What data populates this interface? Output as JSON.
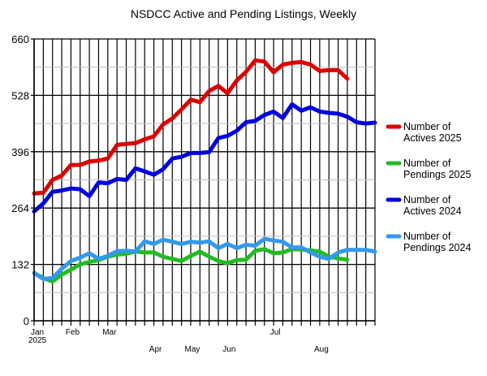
{
  "chart_data": {
    "type": "line",
    "title": "NSDCC Active and Pending Listings, Weekly",
    "xlabel": "",
    "ylabel": "",
    "ylim": [
      0,
      660
    ],
    "yticks": [
      0,
      132,
      264,
      396,
      528,
      660
    ],
    "grid": true,
    "legend_position": "right",
    "x_tick_labels": [
      {
        "week": 0,
        "label": "Jan"
      },
      {
        "week": 0,
        "label": "2025"
      },
      {
        "week": 4,
        "label": "Feb"
      },
      {
        "week": 8,
        "label": "Mar"
      },
      {
        "week": 13,
        "label": "Apr"
      },
      {
        "week": 17,
        "label": "May"
      },
      {
        "week": 21,
        "label": "Jun"
      },
      {
        "week": 26,
        "label": "Jul"
      },
      {
        "week": 31,
        "label": "Aug"
      }
    ],
    "series": [
      {
        "name": "Number of Actives 2025",
        "color": "#dd0000",
        "values": [
          298,
          300,
          330,
          340,
          365,
          365,
          373,
          375,
          380,
          412,
          414,
          416,
          425,
          432,
          460,
          474,
          495,
          518,
          512,
          538,
          550,
          533,
          563,
          583,
          610,
          607,
          582,
          600,
          604,
          606,
          600,
          585,
          587,
          587,
          567
        ]
      },
      {
        "name": "Number of Pendings 2025",
        "color": "#22bb22",
        "values": [
          112,
          100,
          92,
          108,
          120,
          132,
          138,
          142,
          150,
          155,
          157,
          162,
          160,
          160,
          150,
          145,
          140,
          152,
          162,
          150,
          140,
          135,
          142,
          143,
          164,
          168,
          158,
          160,
          168,
          167,
          165,
          162,
          150,
          146,
          143
        ]
      },
      {
        "name": "Number of Actives 2024",
        "color": "#0000dd",
        "values": [
          256,
          275,
          302,
          305,
          310,
          308,
          292,
          324,
          322,
          332,
          330,
          357,
          350,
          342,
          355,
          380,
          384,
          393,
          393,
          395,
          428,
          433,
          445,
          465,
          468,
          482,
          490,
          475,
          507,
          492,
          500,
          490,
          487,
          485,
          478,
          465,
          462,
          464
        ]
      },
      {
        "name": "Number of Pendings 2024",
        "color": "#3399ee",
        "values": [
          112,
          98,
          100,
          122,
          140,
          148,
          158,
          145,
          152,
          163,
          164,
          162,
          186,
          180,
          190,
          185,
          180,
          185,
          183,
          186,
          170,
          180,
          170,
          178,
          176,
          192,
          188,
          185,
          172,
          172,
          160,
          150,
          145,
          160,
          166,
          166,
          166,
          162
        ]
      }
    ]
  }
}
